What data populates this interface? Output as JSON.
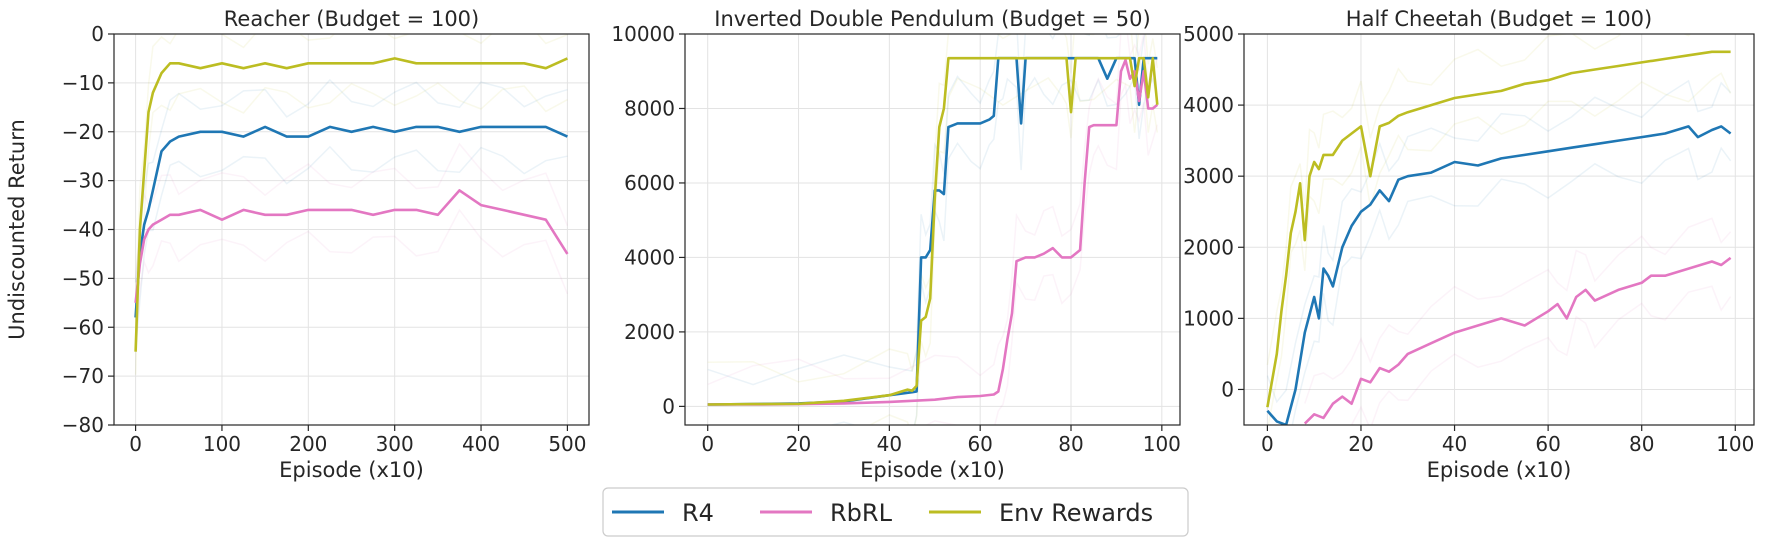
{
  "colors": {
    "R4": "#1f77b4",
    "RbRL": "#e377c2",
    "Env Rewards": "#bcbd22"
  },
  "legend": {
    "entries": [
      "R4",
      "RbRL",
      "Env Rewards"
    ],
    "placement": "bottom-center"
  },
  "chart_data": [
    {
      "type": "line",
      "title": "Reacher (Budget = 100)",
      "xlabel": "Episode (x10)",
      "ylabel": "Undiscounted Return",
      "xlim": [
        -25,
        525
      ],
      "ylim": [
        -80,
        0
      ],
      "xticks": [
        0,
        100,
        200,
        300,
        400,
        500
      ],
      "yticks": [
        -80,
        -70,
        -60,
        -50,
        -40,
        -30,
        -20,
        -10,
        0
      ],
      "grid": true,
      "series": [
        {
          "name": "R4",
          "x": [
            0,
            5,
            10,
            15,
            20,
            30,
            40,
            50,
            75,
            100,
            125,
            150,
            175,
            200,
            225,
            250,
            275,
            300,
            325,
            350,
            375,
            400,
            425,
            450,
            475,
            500
          ],
          "y": [
            -58,
            -45,
            -39,
            -36,
            -32,
            -24,
            -22,
            -21,
            -20,
            -20,
            -21,
            -19,
            -21,
            -21,
            -19,
            -20,
            -19,
            -20,
            -19,
            -19,
            -20,
            -19,
            -19,
            -19,
            -19,
            -21
          ]
        },
        {
          "name": "RbRL",
          "x": [
            0,
            5,
            10,
            15,
            20,
            30,
            40,
            50,
            75,
            100,
            125,
            150,
            175,
            200,
            225,
            250,
            275,
            300,
            325,
            350,
            375,
            400,
            425,
            450,
            475,
            500
          ],
          "y": [
            -55,
            -47,
            -42,
            -40,
            -39,
            -38,
            -37,
            -37,
            -36,
            -38,
            -36,
            -37,
            -37,
            -36,
            -36,
            -36,
            -37,
            -36,
            -36,
            -37,
            -32,
            -35,
            -36,
            -37,
            -38,
            -45
          ]
        },
        {
          "name": "Env Rewards",
          "x": [
            0,
            5,
            10,
            15,
            20,
            30,
            40,
            50,
            75,
            100,
            125,
            150,
            175,
            200,
            225,
            250,
            275,
            300,
            325,
            350,
            375,
            400,
            425,
            450,
            475,
            500
          ],
          "y": [
            -65,
            -40,
            -28,
            -16,
            -12,
            -8,
            -6,
            -6,
            -7,
            -6,
            -7,
            -6,
            -7,
            -6,
            -6,
            -6,
            -6,
            -5,
            -6,
            -6,
            -6,
            -6,
            -6,
            -6,
            -7,
            -5
          ]
        }
      ]
    },
    {
      "type": "line",
      "title": "Inverted Double Pendulum (Budget = 50)",
      "xlabel": "Episode (x10)",
      "ylabel": "",
      "xlim": [
        -5,
        104
      ],
      "ylim": [
        -500,
        10000
      ],
      "xticks": [
        0,
        20,
        40,
        60,
        80,
        100
      ],
      "yticks": [
        0,
        2000,
        4000,
        6000,
        8000,
        10000
      ],
      "grid": true,
      "series": [
        {
          "name": "R4",
          "x": [
            0,
            10,
            20,
            30,
            40,
            45,
            46,
            47,
            48,
            49,
            50,
            51,
            52,
            53,
            55,
            58,
            60,
            62,
            63,
            64,
            65,
            66,
            68,
            69,
            70,
            72,
            74,
            76,
            78,
            80,
            82,
            84,
            86,
            88,
            90,
            92,
            94,
            95,
            96,
            97,
            98,
            99
          ],
          "y": [
            50,
            60,
            80,
            130,
            300,
            380,
            400,
            4000,
            4000,
            4200,
            5800,
            5800,
            5700,
            7500,
            7600,
            7600,
            7600,
            7700,
            7800,
            9350,
            9350,
            9350,
            9350,
            7600,
            9350,
            9350,
            9350,
            9350,
            9350,
            9350,
            9350,
            9350,
            9350,
            8800,
            9350,
            9350,
            9350,
            8100,
            9350,
            9350,
            9350,
            9350
          ]
        },
        {
          "name": "RbRL",
          "x": [
            0,
            10,
            20,
            30,
            40,
            50,
            55,
            60,
            63,
            64,
            65,
            66,
            67,
            68,
            70,
            72,
            74,
            76,
            78,
            80,
            82,
            83,
            84,
            85,
            86,
            88,
            90,
            91,
            92,
            93,
            94,
            95,
            96,
            97,
            98,
            99
          ],
          "y": [
            50,
            50,
            60,
            80,
            120,
            180,
            250,
            280,
            320,
            400,
            1000,
            1800,
            2500,
            3900,
            4000,
            4000,
            4100,
            4250,
            4000,
            4000,
            4200,
            6000,
            7500,
            7550,
            7550,
            7550,
            7550,
            9000,
            9300,
            8800,
            9000,
            8200,
            9000,
            8000,
            8000,
            8100
          ]
        },
        {
          "name": "Env Rewards",
          "x": [
            0,
            10,
            20,
            30,
            40,
            44,
            45,
            46,
            47,
            48,
            49,
            50,
            51,
            52,
            53,
            55,
            60,
            65,
            70,
            75,
            78,
            79,
            80,
            81,
            82,
            85,
            90,
            93,
            94,
            95,
            96,
            97,
            98,
            99
          ],
          "y": [
            50,
            60,
            70,
            150,
            300,
            450,
            420,
            550,
            2300,
            2400,
            2900,
            5600,
            7500,
            8000,
            9350,
            9350,
            9350,
            9350,
            9350,
            9350,
            9350,
            9350,
            7900,
            9350,
            9350,
            9350,
            9350,
            9350,
            8600,
            9350,
            9350,
            8300,
            9350,
            8100
          ]
        }
      ]
    },
    {
      "type": "line",
      "title": "Half Cheetah (Budget = 100)",
      "xlabel": "Episode (x10)",
      "ylabel": "",
      "xlim": [
        -5,
        104
      ],
      "ylim": [
        -500,
        5000
      ],
      "xticks": [
        0,
        20,
        40,
        60,
        80,
        100
      ],
      "yticks": [
        0,
        1000,
        2000,
        3000,
        4000,
        5000
      ],
      "grid": true,
      "series": [
        {
          "name": "R4",
          "x": [
            0,
            2,
            4,
            6,
            8,
            10,
            11,
            12,
            13,
            14,
            16,
            18,
            20,
            22,
            24,
            26,
            28,
            30,
            35,
            40,
            45,
            50,
            55,
            60,
            65,
            70,
            75,
            80,
            85,
            90,
            92,
            95,
            97,
            99
          ],
          "y": [
            -300,
            -450,
            -500,
            0,
            800,
            1300,
            1000,
            1700,
            1600,
            1450,
            2000,
            2300,
            2500,
            2600,
            2800,
            2650,
            2950,
            3000,
            3050,
            3200,
            3150,
            3250,
            3300,
            3350,
            3400,
            3450,
            3500,
            3550,
            3600,
            3700,
            3550,
            3650,
            3700,
            3600
          ]
        },
        {
          "name": "RbRL",
          "x": [
            8,
            10,
            12,
            14,
            16,
            18,
            20,
            22,
            24,
            26,
            28,
            30,
            35,
            40,
            45,
            50,
            55,
            60,
            62,
            64,
            66,
            68,
            70,
            75,
            80,
            82,
            85,
            90,
            95,
            97,
            99
          ],
          "y": [
            -480,
            -350,
            -400,
            -200,
            -100,
            -200,
            150,
            100,
            300,
            250,
            350,
            500,
            650,
            800,
            900,
            1000,
            900,
            1100,
            1200,
            1000,
            1300,
            1400,
            1250,
            1400,
            1500,
            1600,
            1600,
            1700,
            1800,
            1750,
            1850
          ]
        },
        {
          "name": "Env Rewards",
          "x": [
            0,
            2,
            3,
            4,
            5,
            6,
            7,
            8,
            9,
            10,
            11,
            12,
            14,
            16,
            18,
            20,
            22,
            24,
            26,
            28,
            30,
            35,
            40,
            45,
            50,
            55,
            60,
            65,
            70,
            75,
            80,
            85,
            90,
            95,
            97,
            99
          ],
          "y": [
            -250,
            500,
            1100,
            1600,
            2200,
            2500,
            2900,
            2100,
            3000,
            3200,
            3100,
            3300,
            3300,
            3500,
            3600,
            3700,
            3000,
            3700,
            3750,
            3850,
            3900,
            4000,
            4100,
            4150,
            4200,
            4300,
            4350,
            4450,
            4500,
            4550,
            4600,
            4650,
            4700,
            4750,
            4750,
            4750
          ]
        }
      ]
    }
  ]
}
